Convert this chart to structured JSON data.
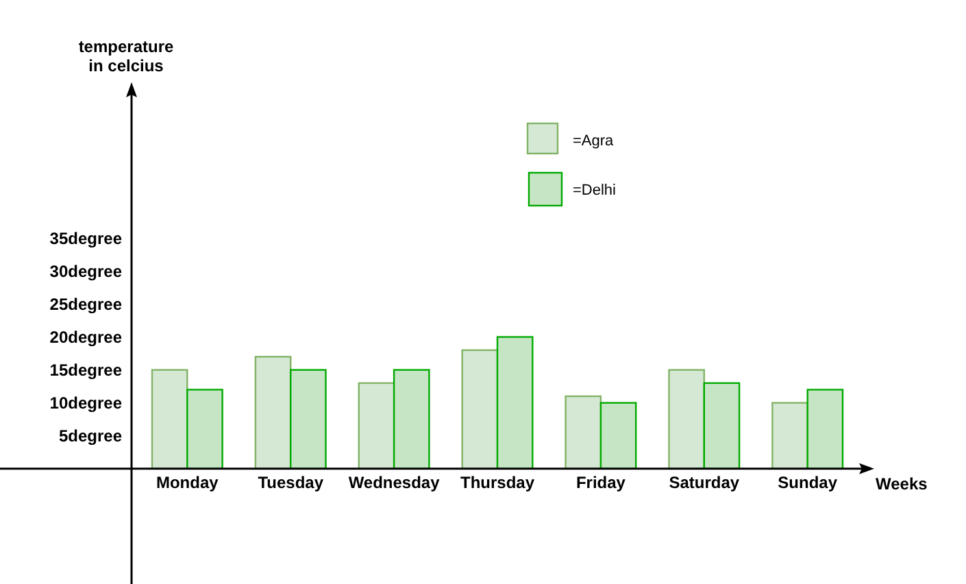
{
  "chart_data": {
    "type": "bar",
    "xlabel": "Weeks",
    "ylabel": "temperature\nin celcius",
    "categories": [
      "Monday",
      "Tuesday",
      "Wednesday",
      "Thursday",
      "Friday",
      "Saturday",
      "Sunday"
    ],
    "series": [
      {
        "name": "=Agra",
        "color": "#d5e8d4",
        "values": [
          15,
          17,
          13,
          18,
          11,
          15,
          10
        ]
      },
      {
        "name": "=Delhi",
        "color": "#c6e5c4",
        "values": [
          12,
          15,
          15,
          20,
          10,
          13,
          12
        ]
      }
    ],
    "ylim": [
      -17.5,
      57
    ],
    "yticks": [
      {
        "value": 5,
        "label": "5degree"
      },
      {
        "value": 10,
        "label": "10degree"
      },
      {
        "value": 15,
        "label": "15degree"
      },
      {
        "value": 20,
        "label": "20degree"
      },
      {
        "value": 25,
        "label": "25degree"
      },
      {
        "value": 30,
        "label": "30degree"
      },
      {
        "value": 35,
        "label": "35degree"
      }
    ],
    "legend": "top right"
  }
}
